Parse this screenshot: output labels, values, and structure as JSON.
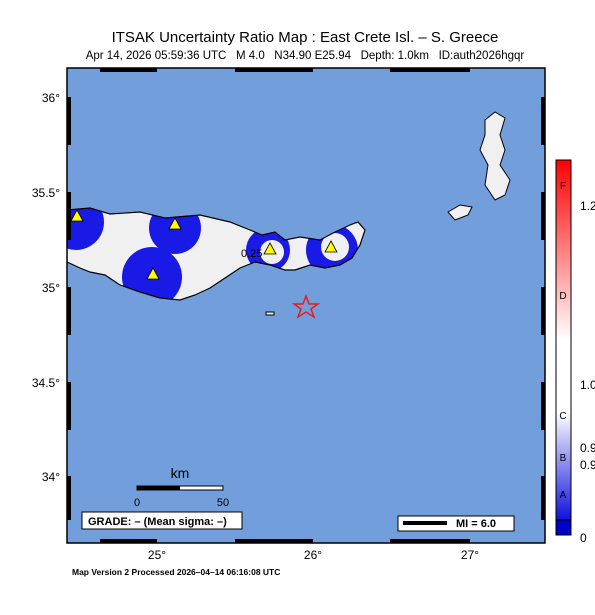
{
  "header": {
    "title": "ITSAK Uncertainty Ratio Map : East Crete Isl. – S. Greece",
    "subtitle": "Apr 14, 2026 05:59:36 UTC   M 4.0   N34.90 E25.94   Depth: 1.0km   ID:auth2026hgqr"
  },
  "axes": {
    "lat_labels": [
      "36°",
      "35.5°",
      "35°",
      "34.5°",
      "34°"
    ],
    "lon_labels": [
      "25°",
      "26°",
      "27°"
    ]
  },
  "scale": {
    "title": "km",
    "labels": [
      "0",
      "50"
    ]
  },
  "grade": "GRADE: – (Mean sigma: –)",
  "magnitude": "MI = 6.0",
  "contour_label": "0.25",
  "footer": "Map Version 2 Processed 2026–04–14 06:16:08 UTC",
  "colorbar": {
    "grades": [
      "F",
      "D",
      "C",
      "B",
      "A"
    ],
    "labels": [
      "1.2",
      "1.0",
      "0.9",
      "0.9",
      "0"
    ]
  }
}
